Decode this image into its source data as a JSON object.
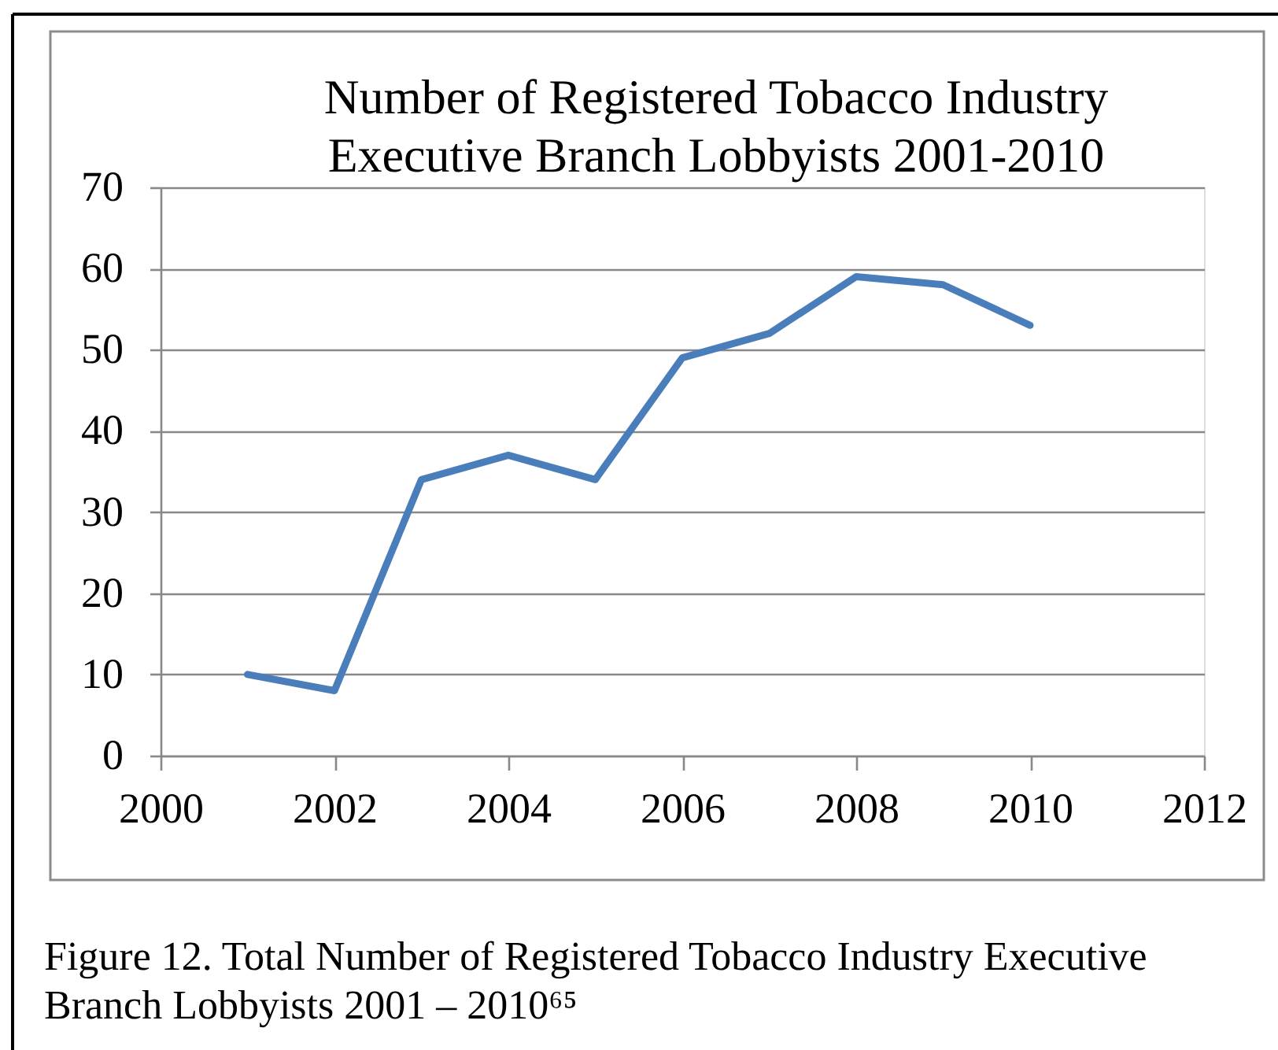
{
  "chart_data": {
    "type": "line",
    "title": "Number of Registered Tobacco Industry Executive Branch  Lobbyists 2001-2010",
    "x": [
      2001,
      2002,
      2003,
      2004,
      2005,
      2006,
      2007,
      2008,
      2009,
      2010
    ],
    "values": [
      10,
      8,
      34,
      37,
      34,
      49,
      52,
      59,
      58,
      53
    ],
    "color": "#4a7ebb",
    "xlim": [
      2000,
      2012
    ],
    "xticks": [
      2000,
      2002,
      2004,
      2006,
      2008,
      2010,
      2012
    ],
    "ylim": [
      0,
      70
    ],
    "yticks": [
      0,
      10,
      20,
      30,
      40,
      50,
      60,
      70
    ],
    "grid": "y",
    "marker": "none",
    "line_style": "solid",
    "annotations": [
      "Figure 12. Total Number of Registered Tobacco Industry Executive Branch Lobbyists 2001 – 2010⁶⁵"
    ]
  }
}
